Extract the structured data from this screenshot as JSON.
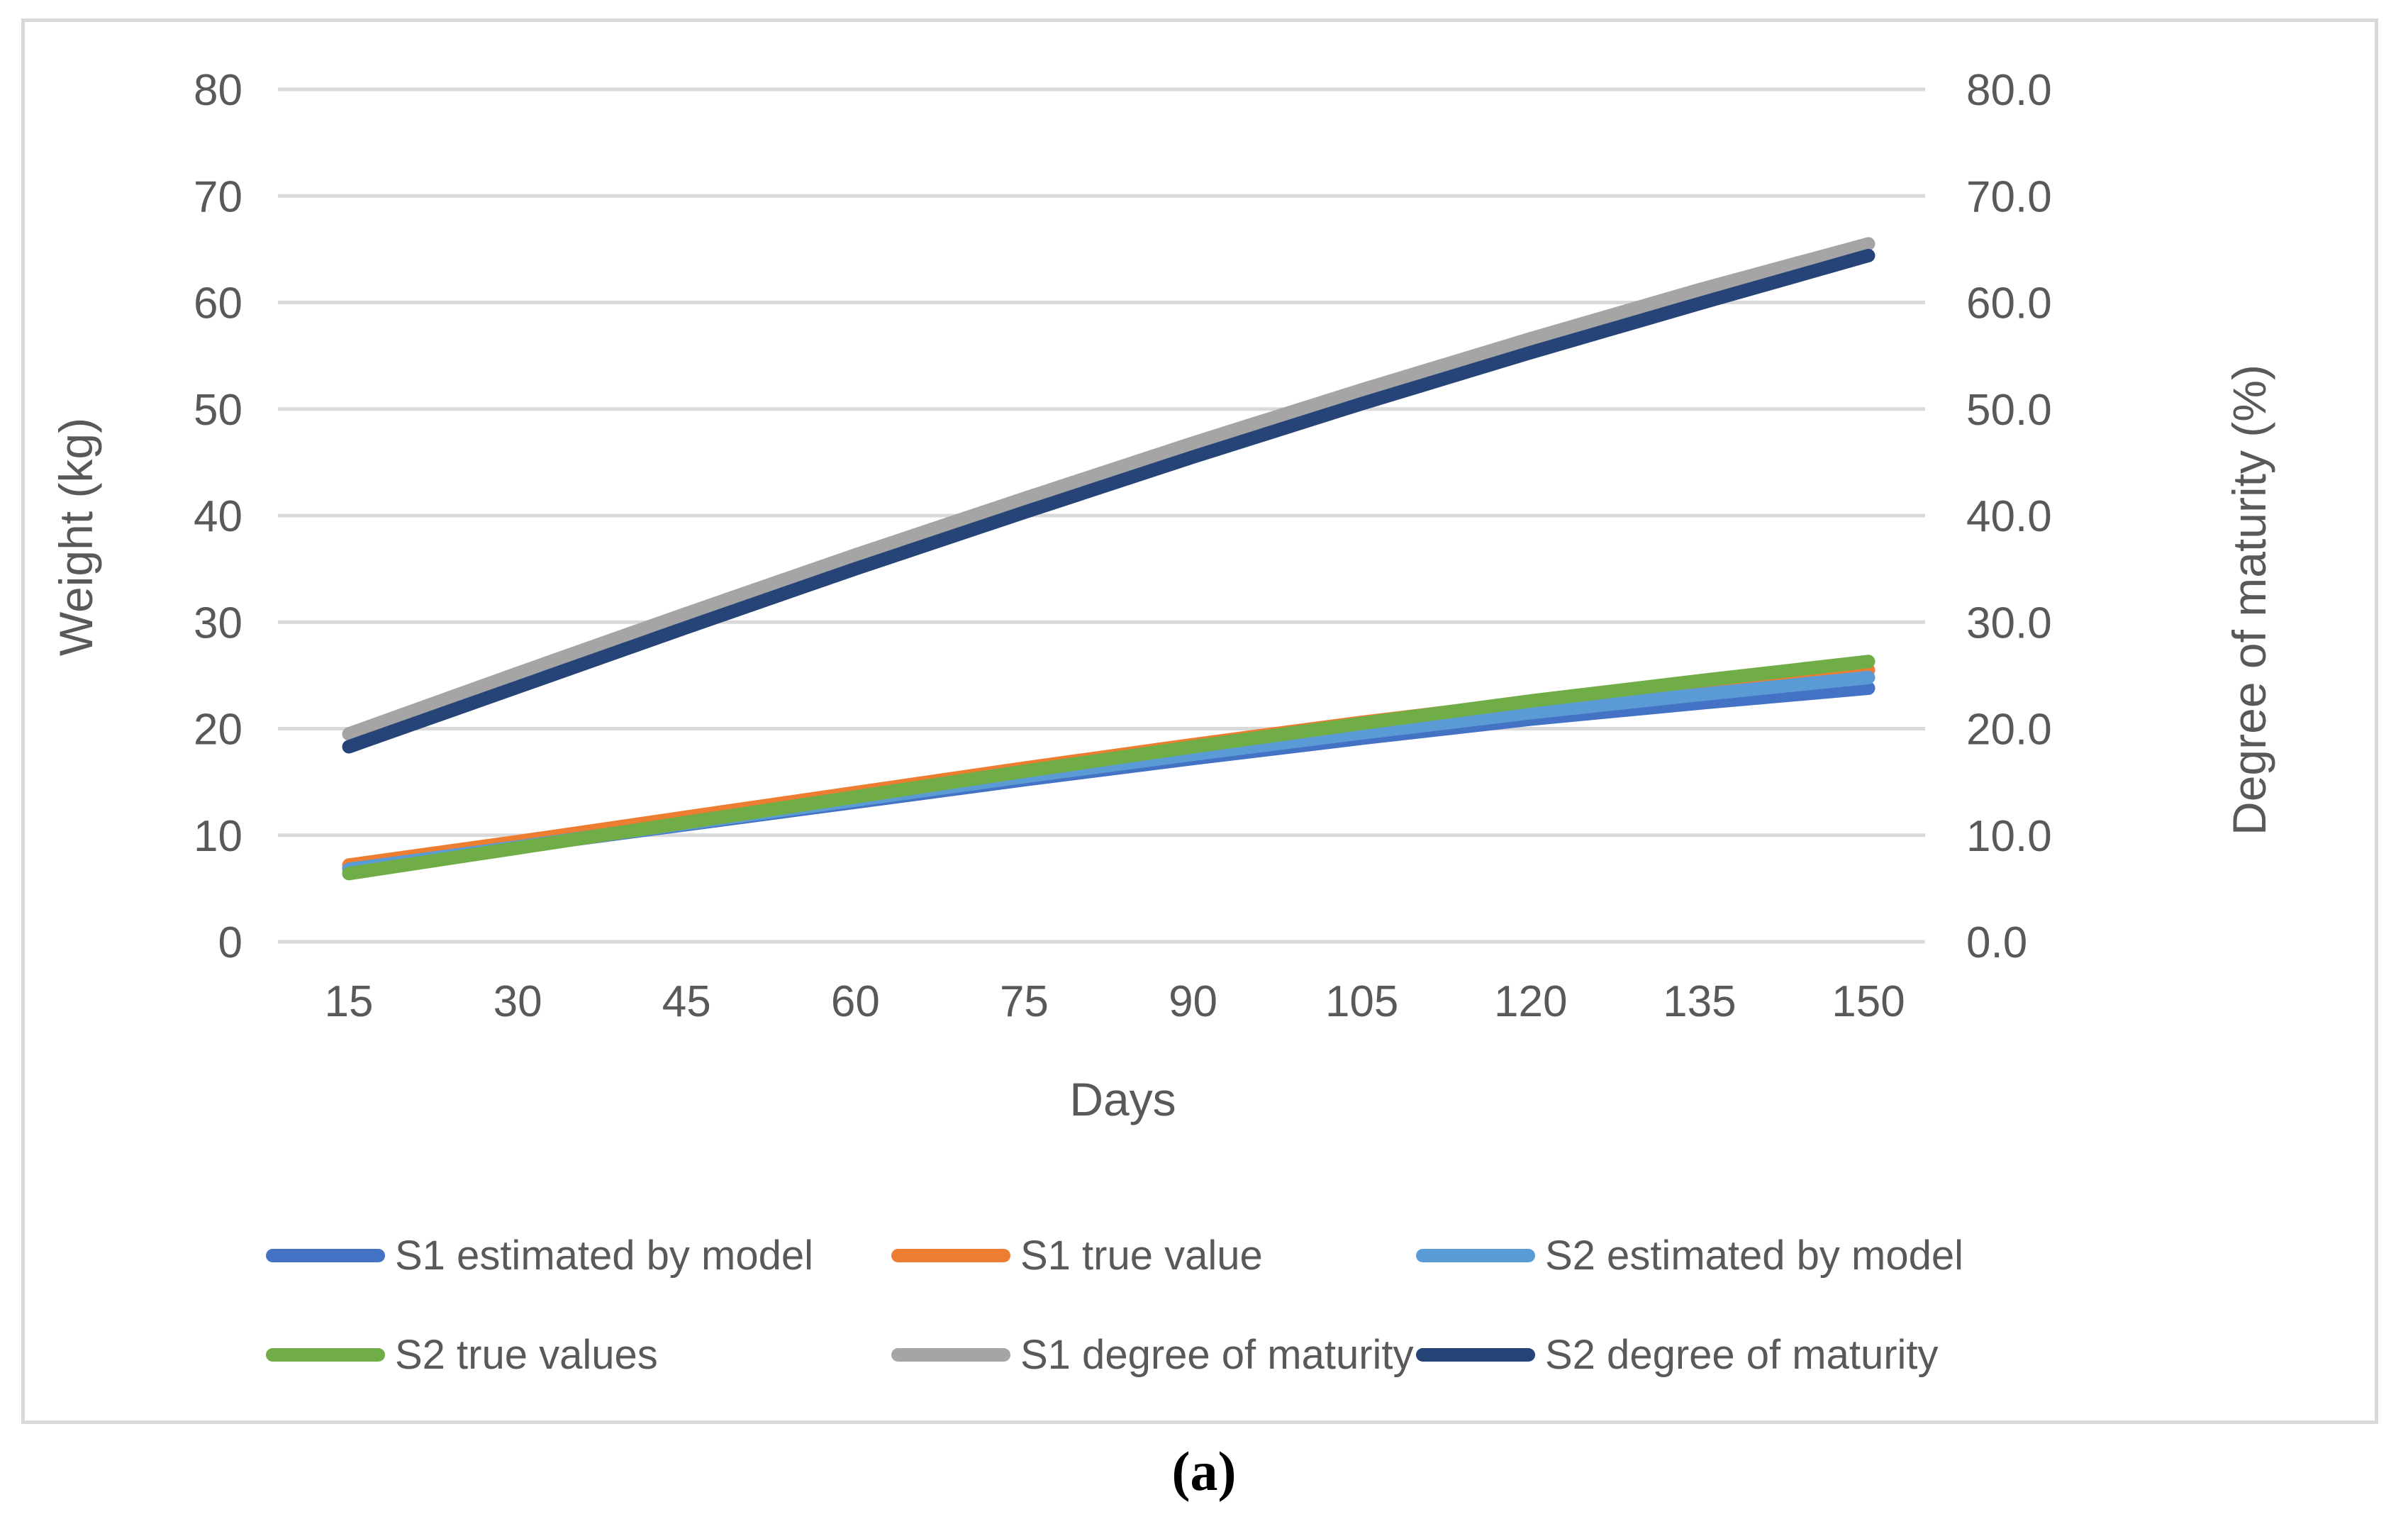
{
  "caption": "(a)",
  "chart_data": {
    "type": "line",
    "x": [
      15,
      30,
      45,
      60,
      75,
      90,
      105,
      120,
      135,
      150
    ],
    "xlabel": "Days",
    "x_tick_labels": [
      "15",
      "30",
      "45",
      "60",
      "75",
      "90",
      "105",
      "120",
      "135",
      "150"
    ],
    "ylabel_left": "Weight (kg)",
    "ylabel_right": "Degree of maturity (%)",
    "y_left_ticks": [
      "80",
      "70",
      "60",
      "50",
      "40",
      "30",
      "20",
      "10",
      "0"
    ],
    "y_right_ticks": [
      "80.0",
      "70.0",
      "60.0",
      "50.0",
      "40.0",
      "30.0",
      "20.0",
      "10.0",
      "0.0"
    ],
    "ylim_left": [
      0,
      80
    ],
    "ylim_right": [
      0.0,
      80.0
    ],
    "grid": true,
    "gridline_color": "#d9d9d9",
    "text_color": "#595959",
    "legend_position": "bottom",
    "series": [
      {
        "name": "S1 estimated by model",
        "axis": "left",
        "color": "#4472C4",
        "values": [
          6.9,
          8.9,
          11.0,
          13.1,
          15.2,
          17.2,
          19.1,
          20.9,
          22.4,
          23.8
        ]
      },
      {
        "name": "S1 true value",
        "axis": "left",
        "color": "#ED7D31",
        "values": [
          7.2,
          9.4,
          11.7,
          14.0,
          16.3,
          18.5,
          20.6,
          22.5,
          24.1,
          25.5
        ]
      },
      {
        "name": "S2 estimated by model",
        "axis": "left",
        "color": "#5B9BD5",
        "values": [
          6.8,
          8.9,
          11.1,
          13.3,
          15.5,
          17.6,
          19.6,
          21.5,
          23.2,
          24.8
        ]
      },
      {
        "name": "S2 true values",
        "axis": "left",
        "color": "#70AD47",
        "values": [
          6.4,
          8.8,
          11.2,
          13.6,
          16.0,
          18.3,
          20.5,
          22.6,
          24.5,
          26.3
        ]
      },
      {
        "name": "S1 degree of maturity",
        "axis": "right",
        "color": "#A5A5A5",
        "values": [
          19.5,
          25.2,
          30.8,
          36.3,
          41.6,
          46.8,
          51.8,
          56.6,
          61.2,
          65.5
        ]
      },
      {
        "name": "S2 degree of maturity",
        "axis": "right",
        "color": "#264478",
        "values": [
          18.3,
          23.9,
          29.5,
          35.0,
          40.3,
          45.5,
          50.5,
          55.3,
          59.9,
          64.4
        ]
      }
    ]
  }
}
